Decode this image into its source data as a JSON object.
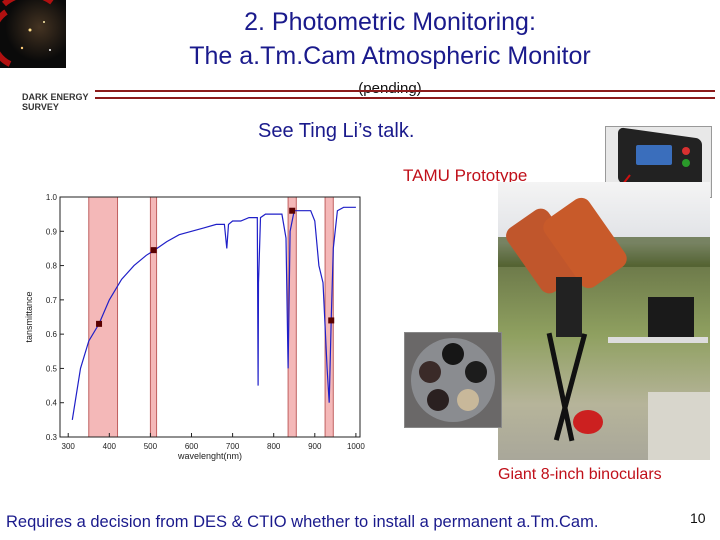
{
  "header": {
    "logo_text_line1": "DARK ENERGY",
    "logo_text_line2": "SURVEY",
    "title_line1": "2. Photometric Monitoring:",
    "title_line2": "The a.Tm.Cam Atmospheric Monitor",
    "subtitle": "(pending)"
  },
  "body": {
    "talk_text": "See Ting Li’s talk.",
    "prototype_label": "TAMU Prototype",
    "binoculars_caption": "Giant 8-inch binoculars",
    "footer_text": "Requires a decision from DES & CTIO whether to install a permanent a.Tm.Cam.",
    "page_number": "10"
  },
  "colors": {
    "title_blue": "#1a1a8c",
    "accent_red": "#c0101a",
    "band_fill": "#f4b8b8",
    "curve_blue": "#1f1fc8"
  },
  "chart_data": {
    "type": "line",
    "xlabel": "wavelenght(nm)",
    "ylabel": "tansmittance",
    "xlim": [
      280,
      1010
    ],
    "ylim": [
      0.3,
      1.0
    ],
    "x_ticks": [
      300,
      400,
      500,
      600,
      700,
      800,
      900,
      1000
    ],
    "y_ticks": [
      0.3,
      0.4,
      0.5,
      0.6,
      0.7,
      0.8,
      0.9,
      1.0
    ],
    "bands": [
      [
        350,
        420
      ],
      [
        500,
        515
      ],
      [
        835,
        855
      ],
      [
        925,
        945
      ]
    ],
    "markers": [
      {
        "x": 375,
        "y": 0.63
      },
      {
        "x": 508,
        "y": 0.845
      },
      {
        "x": 845,
        "y": 0.96
      },
      {
        "x": 940,
        "y": 0.64
      }
    ],
    "x": [
      310,
      330,
      350,
      375,
      400,
      430,
      460,
      490,
      510,
      540,
      570,
      600,
      630,
      660,
      680,
      686,
      690,
      700,
      720,
      740,
      760,
      762,
      763,
      768,
      780,
      800,
      820,
      830,
      835,
      840,
      850,
      870,
      890,
      900,
      910,
      920,
      930,
      935,
      940,
      945,
      955,
      970,
      990,
      1000
    ],
    "y": [
      0.35,
      0.5,
      0.58,
      0.63,
      0.7,
      0.76,
      0.8,
      0.83,
      0.845,
      0.87,
      0.89,
      0.9,
      0.91,
      0.92,
      0.92,
      0.85,
      0.92,
      0.93,
      0.93,
      0.94,
      0.94,
      0.45,
      0.75,
      0.94,
      0.95,
      0.95,
      0.95,
      0.88,
      0.5,
      0.9,
      0.96,
      0.96,
      0.96,
      0.93,
      0.8,
      0.75,
      0.5,
      0.4,
      0.64,
      0.85,
      0.96,
      0.97,
      0.97,
      0.97
    ]
  }
}
